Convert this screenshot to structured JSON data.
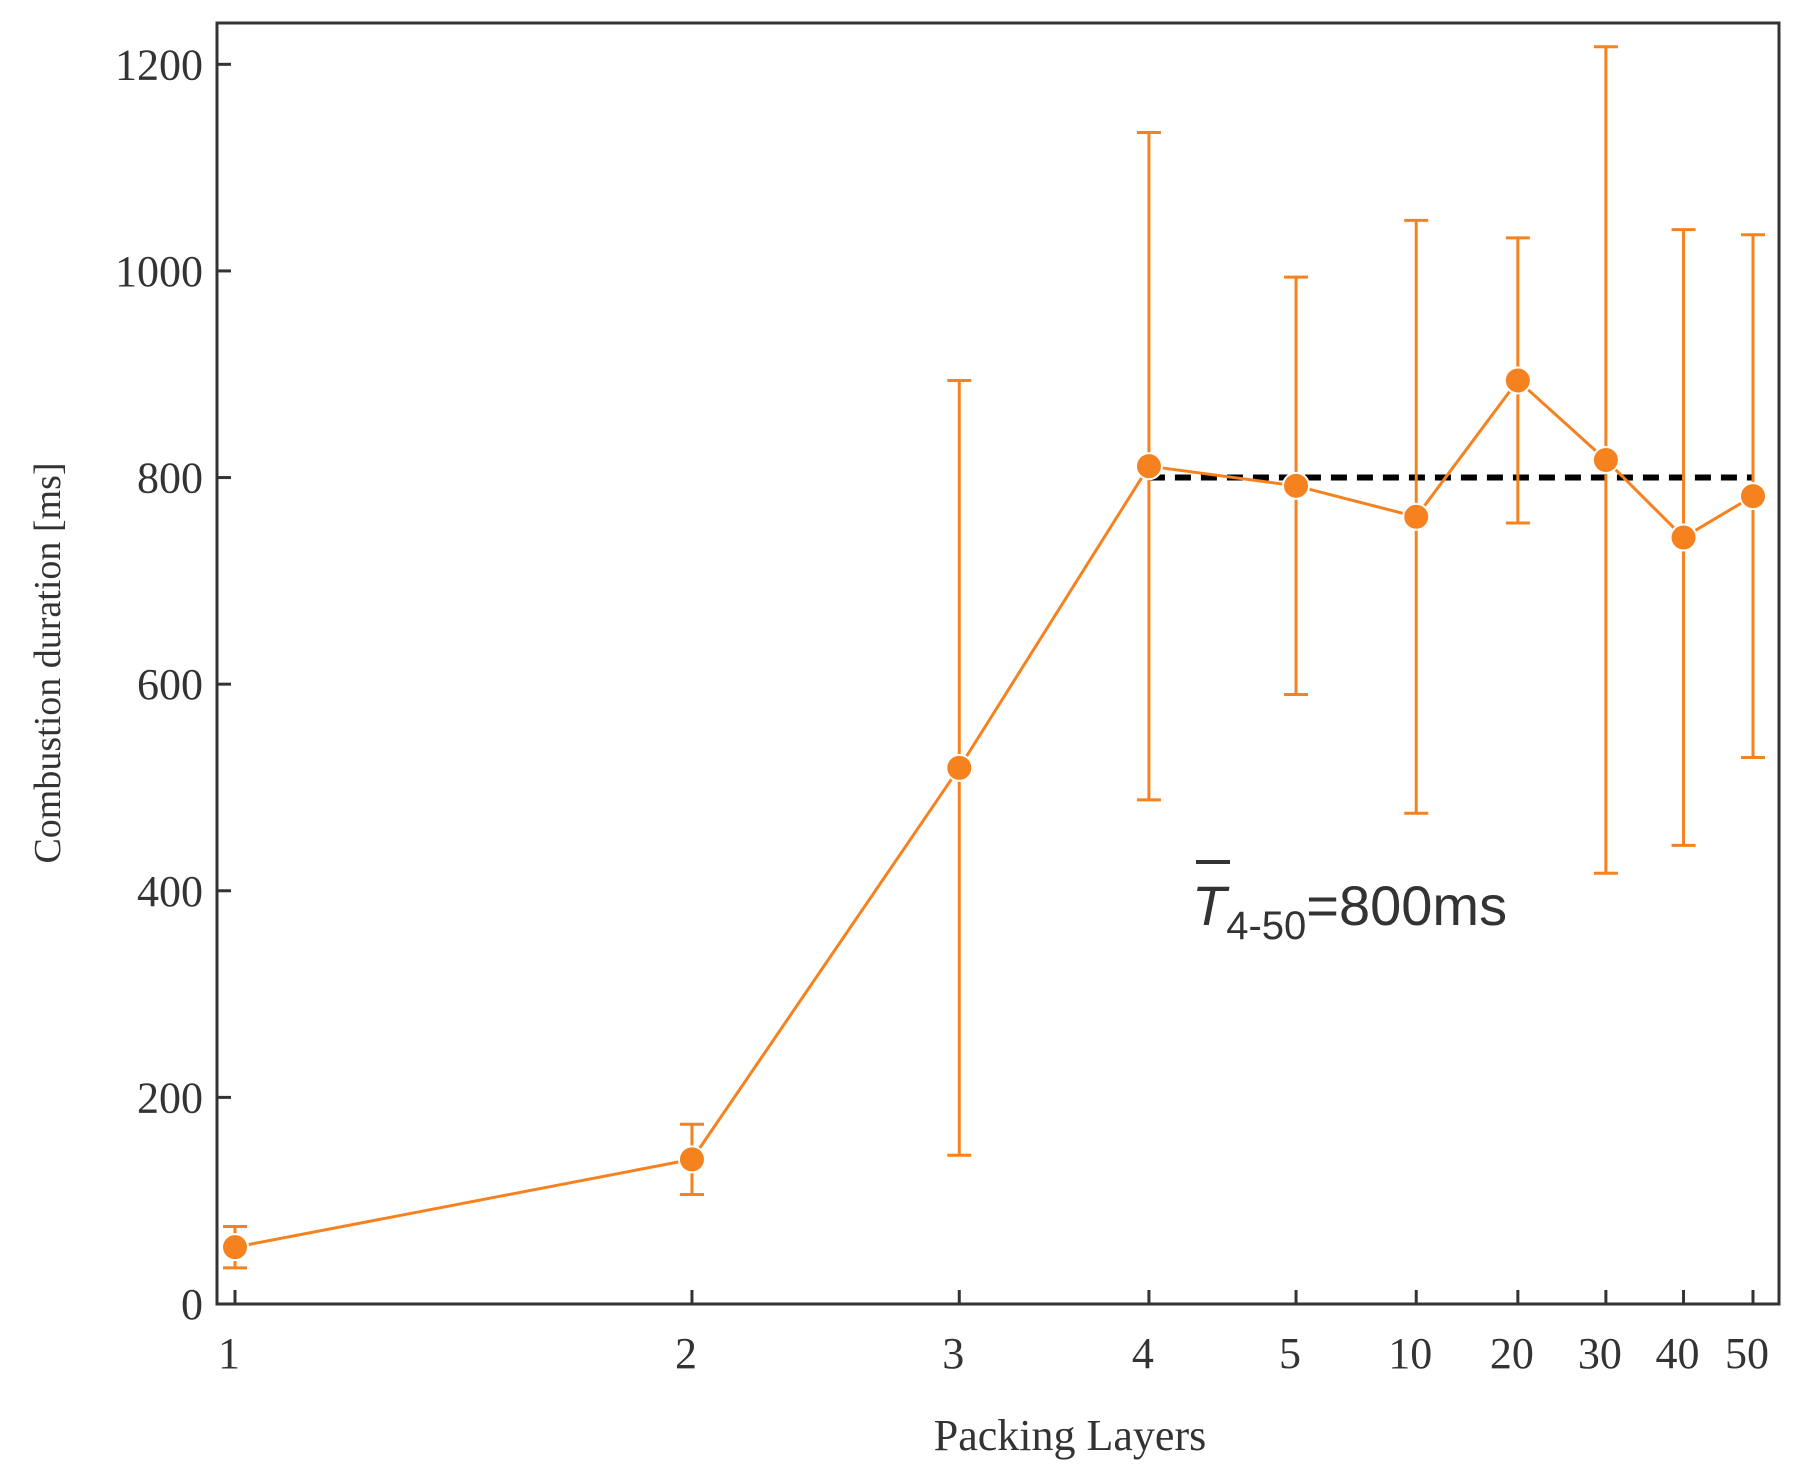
{
  "chart_data": {
    "type": "line",
    "x_label": "Packing Layers",
    "y_label": "Combustion duration [ms]",
    "categories": [
      "1",
      "2",
      "3",
      "4",
      "5",
      "10",
      "20",
      "30",
      "40",
      "50"
    ],
    "series": [
      {
        "color": "#f5821f",
        "values": [
          55,
          140,
          519,
          811,
          792,
          762,
          894,
          817,
          742,
          782
        ],
        "errors": [
          20,
          34,
          375,
          323,
          202,
          287,
          138,
          400,
          298,
          253
        ]
      }
    ],
    "ylim": [
      0,
      1240
    ],
    "yticks": [
      0,
      200,
      400,
      600,
      800,
      1000,
      1200
    ],
    "reference_line": {
      "value": 800,
      "from": "4",
      "to": "50",
      "color": "#000000"
    },
    "annotation": {
      "symbol": "T",
      "subscript": "4-50",
      "text": "=800ms"
    }
  }
}
